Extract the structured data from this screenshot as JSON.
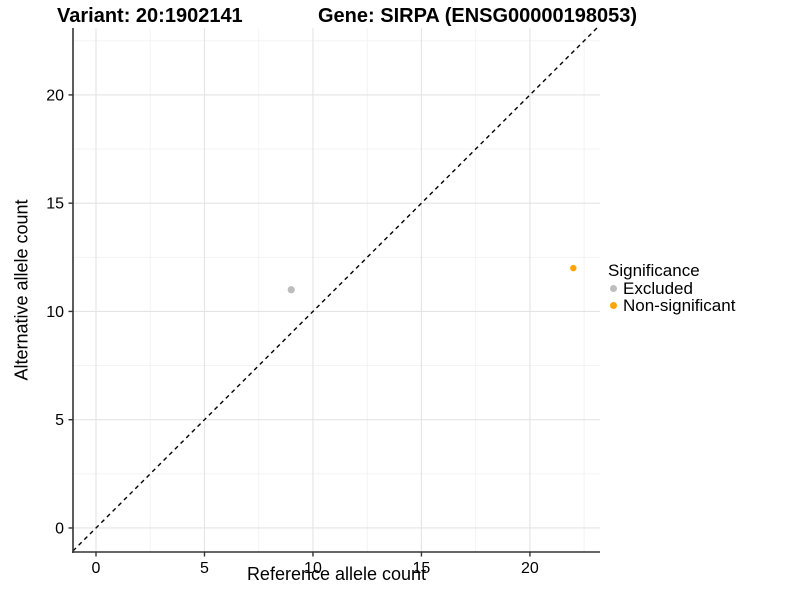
{
  "header": {
    "variant_title": "Variant: 20:1902141",
    "gene_title": "Gene: SIRPA (ENSG00000198053)"
  },
  "chart_data": {
    "type": "scatter",
    "xlabel": "Reference allele count",
    "ylabel": "Alternative allele count",
    "x_ticks": [
      0,
      5,
      10,
      15,
      20
    ],
    "y_ticks": [
      0,
      5,
      10,
      15,
      20
    ],
    "xlim": [
      -1.06,
      23.23
    ],
    "ylim": [
      -1.11,
      23.09
    ],
    "grid": "major+minor",
    "grid_major_color": "#e4e4e4",
    "grid_minor_color": "#f2f2f2",
    "axis_line_color": "#333333",
    "identity_line": {
      "slope": 1,
      "intercept": 0,
      "style": "dashed",
      "color": "#000000"
    },
    "series": [
      {
        "name": "Excluded",
        "color": "#bdbdbd",
        "radius": 3.6,
        "points": [
          {
            "x": 9,
            "y": 11
          }
        ]
      },
      {
        "name": "Non-significant",
        "color": "#ffa500",
        "radius": 3.2,
        "points": [
          {
            "x": 22,
            "y": 12
          }
        ]
      }
    ],
    "legend": {
      "title": "Significance",
      "position": "right",
      "entries": [
        {
          "label": "Excluded",
          "color": "#bdbdbd"
        },
        {
          "label": "Non-significant",
          "color": "#ffa500"
        }
      ]
    }
  }
}
